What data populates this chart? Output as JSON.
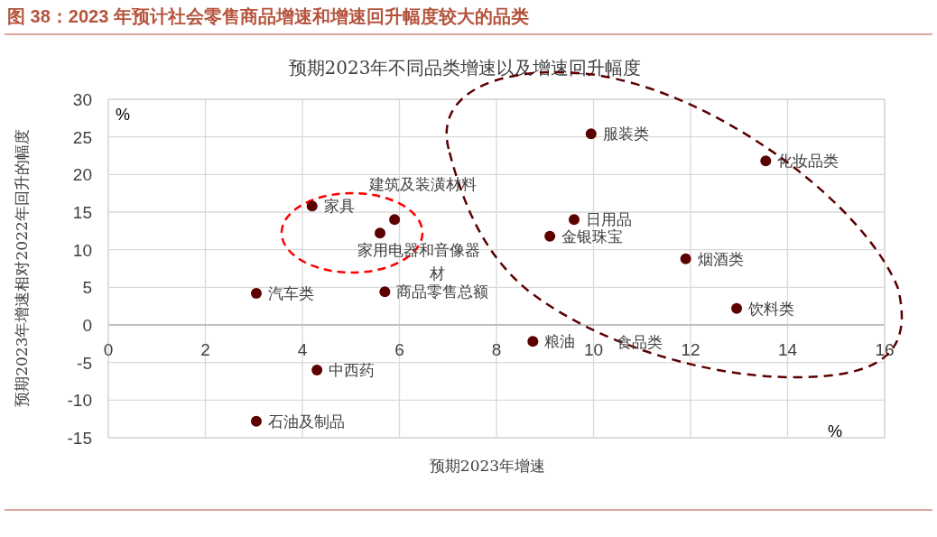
{
  "chart_data": {
    "type": "scatter",
    "title": "图 38：2023 年预计社会零售商品增速和增速回升幅度较大的品类",
    "subtitle": "预期2023年不同品类增速以及增速回升幅度",
    "xlabel": "预期2023年增速",
    "ylabel": "预期2023年增速相对2022年回升的幅度",
    "annotations": [
      "%",
      "%",
      "食品类"
    ],
    "xlim": [
      0,
      16
    ],
    "xticks": [
      0,
      2,
      4,
      6,
      8,
      10,
      12,
      14,
      16
    ],
    "ylim": [
      -15,
      30
    ],
    "yticks": [
      -15,
      -10,
      -5,
      0,
      5,
      10,
      15,
      20,
      25,
      30
    ],
    "grid": true,
    "marker": "circle",
    "series": [
      {
        "name": "家具",
        "color": "#5c0000",
        "x": [
          4.2
        ],
        "values": [
          15.8
        ]
      },
      {
        "name": "建筑及装潢材料",
        "color": "#5c0000",
        "x": [
          5.9
        ],
        "values": [
          14.0
        ]
      },
      {
        "name": "家用电器和音像器材",
        "color": "#5c0000",
        "x": [
          5.6
        ],
        "values": [
          12.2
        ]
      },
      {
        "name": "汽车类",
        "color": "#5c0000",
        "x": [
          3.05
        ],
        "values": [
          4.2
        ]
      },
      {
        "name": "商品零售总额",
        "color": "#5c0000",
        "x": [
          5.7
        ],
        "values": [
          4.4
        ]
      },
      {
        "name": "中西药",
        "color": "#5c0000",
        "x": [
          4.3
        ],
        "values": [
          -6.0
        ]
      },
      {
        "name": "石油及制品",
        "color": "#5c0000",
        "x": [
          3.05
        ],
        "values": [
          -12.8
        ]
      },
      {
        "name": "粮油",
        "color": "#5c0000",
        "x": [
          8.75
        ],
        "values": [
          -2.2
        ]
      },
      {
        "name": "服装类",
        "color": "#5c0000",
        "x": [
          9.95
        ],
        "values": [
          25.4
        ]
      },
      {
        "name": "化妆品类",
        "color": "#5c0000",
        "x": [
          13.55
        ],
        "values": [
          21.8
        ]
      },
      {
        "name": "日用品",
        "color": "#5c0000",
        "x": [
          9.6
        ],
        "values": [
          14.0
        ]
      },
      {
        "name": "金银珠宝",
        "color": "#5c0000",
        "x": [
          9.1
        ],
        "values": [
          11.8
        ]
      },
      {
        "name": "烟酒类",
        "color": "#5c0000",
        "x": [
          11.9
        ],
        "values": [
          8.8
        ]
      },
      {
        "name": "饮料类",
        "color": "#5c0000",
        "x": [
          12.95
        ],
        "values": [
          2.2
        ]
      }
    ]
  }
}
